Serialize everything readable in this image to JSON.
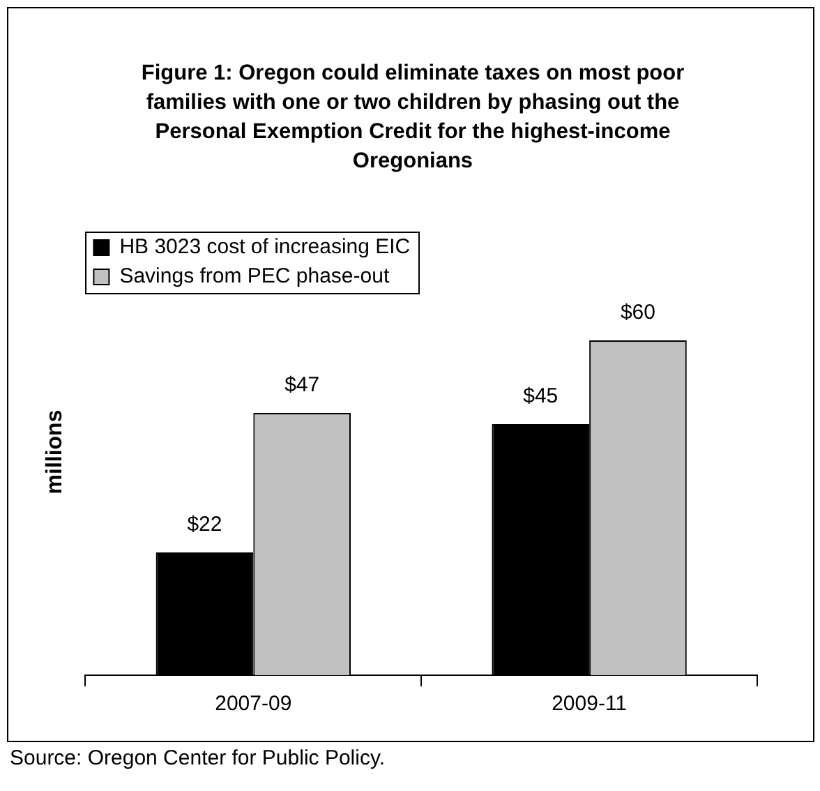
{
  "chart_data": {
    "type": "bar",
    "title": "Figure 1: Oregon could eliminate taxes on most poor families with one or two children by phasing out the Personal Exemption Credit for the highest-income Oregonians",
    "ylabel": "millions",
    "categories": [
      "2007-09",
      "2009-11"
    ],
    "series": [
      {
        "name": "HB 3023 cost of increasing EIC",
        "color": "#000000",
        "values": [
          22,
          45
        ],
        "value_labels": [
          "$22",
          "$45"
        ]
      },
      {
        "name": "Savings from PEC phase-out",
        "color": "#c0c0c0",
        "values": [
          47,
          60
        ],
        "value_labels": [
          "$47",
          "$60"
        ]
      }
    ],
    "legend": "top left",
    "grid": false,
    "annotations": [
      "Source: Oregon Center for Public Policy."
    ]
  }
}
